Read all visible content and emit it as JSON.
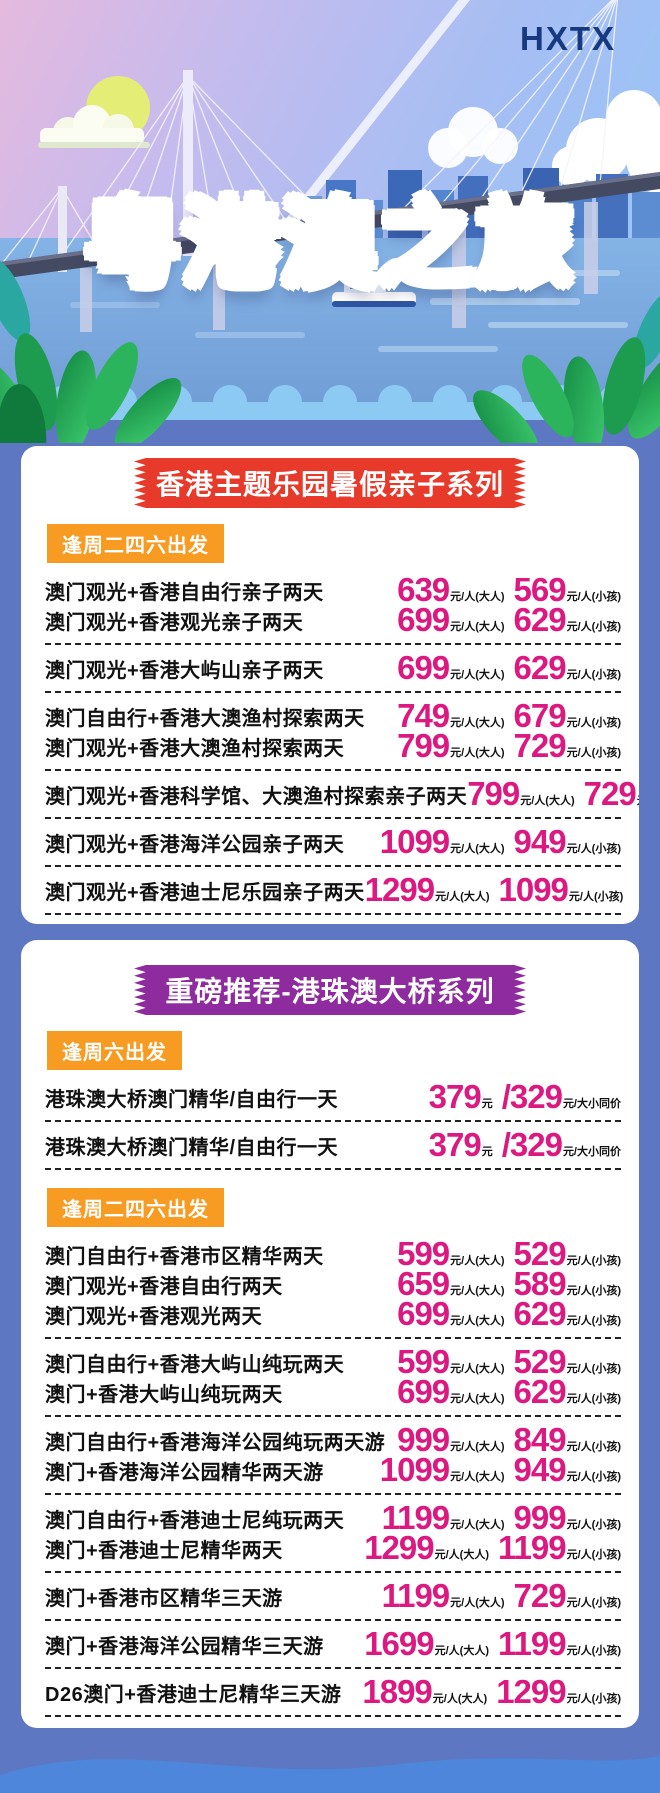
{
  "brand": {
    "logo": "HXTX"
  },
  "hero": {
    "title": "粤港澳之旅"
  },
  "units": {
    "yuan": "元",
    "adult": "元/人(大人)",
    "child": "元/人(小孩)",
    "same": "元/大小同价"
  },
  "colors": {
    "price_pink": "#db1980",
    "ribbon_red": "#e73a2b",
    "ribbon_purple": "#8e2b9e",
    "tag_orange": "#f79b22",
    "section_background": "#5d77c2",
    "card_background": "#ffffff",
    "logo_navy": "#17397f",
    "title_red": "#e8472b"
  },
  "sections": [
    {
      "ribbon": "香港主题乐园暑假亲子系列",
      "blocks": [
        {
          "tag": "逢周二四六出发",
          "groups": [
            [
              {
                "label": "澳门观光+香港自由行亲子两天",
                "adult": "639",
                "child": "569"
              },
              {
                "label": "澳门观光+香港观光亲子两天",
                "adult": "699",
                "child": "629"
              }
            ],
            [
              {
                "label": "澳门观光+香港大屿山亲子两天",
                "adult": "699",
                "child": "629"
              }
            ],
            [
              {
                "label": "澳门自由行+香港大澳渔村探索两天",
                "adult": "749",
                "child": "679"
              },
              {
                "label": "澳门观光+香港大澳渔村探索两天",
                "adult": "799",
                "child": "729"
              }
            ],
            [
              {
                "label": "澳门观光+香港科学馆、大澳渔村探索亲子两天",
                "adult": "799",
                "child": "729"
              }
            ],
            [
              {
                "label": "澳门观光+香港海洋公园亲子两天",
                "adult": "1099",
                "child": "949"
              }
            ],
            [
              {
                "label": "澳门观光+香港迪士尼乐园亲子两天",
                "adult": "1299",
                "child": "1099"
              }
            ]
          ]
        }
      ]
    },
    {
      "ribbon": "重磅推荐-港珠澳大桥系列",
      "blocks": [
        {
          "tag": "逢周六出发",
          "groups": [
            [
              {
                "label": "港珠澳大桥澳门精华/自由行一天",
                "same": true,
                "price1": "379",
                "price2": "329"
              }
            ],
            [
              {
                "label": "港珠澳大桥澳门精华/自由行一天",
                "same": true,
                "price1": "379",
                "price2": "329"
              }
            ]
          ]
        },
        {
          "tag": "逢周二四六出发",
          "groups": [
            [
              {
                "label": "澳门自由行+香港市区精华两天",
                "adult": "599",
                "child": "529"
              },
              {
                "label": "澳门观光+香港自由行两天",
                "adult": "659",
                "child": "589"
              },
              {
                "label": "澳门观光+香港观光两天",
                "adult": "699",
                "child": "629"
              }
            ],
            [
              {
                "label": "澳门自由行+香港大屿山纯玩两天",
                "adult": "599",
                "child": "529"
              },
              {
                "label": "澳门+香港大屿山纯玩两天",
                "adult": "699",
                "child": "629"
              }
            ],
            [
              {
                "label": "澳门自由行+香港海洋公园纯玩两天游",
                "adult": "999",
                "child": "849"
              },
              {
                "label": "澳门+香港海洋公园精华两天游",
                "adult": "1099",
                "child": "949"
              }
            ],
            [
              {
                "label": "澳门自由行+香港迪士尼纯玩两天",
                "adult": "1199",
                "child": "999"
              },
              {
                "label": "澳门+香港迪士尼精华两天",
                "adult": "1299",
                "child": "1199"
              }
            ],
            [
              {
                "label": "澳门+香港市区精华三天游",
                "adult": "1199",
                "child": "729"
              }
            ],
            [
              {
                "label": "澳门+香港海洋公园精华三天游",
                "adult": "1699",
                "child": "1199"
              }
            ],
            [
              {
                "label": "D26澳门+香港迪士尼精华三天游",
                "adult": "1899",
                "child": "1299"
              }
            ]
          ]
        }
      ]
    }
  ]
}
